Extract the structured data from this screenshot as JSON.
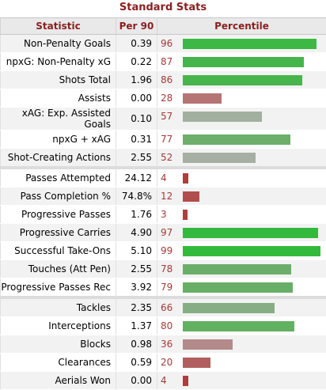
{
  "table": {
    "caption": "Standard Stats",
    "headers": {
      "stat": "Statistic",
      "per90": "Per 90",
      "percentile": "Percentile"
    },
    "groups": [
      [
        {
          "label": "Non-Penalty Goals",
          "per90": "0.39",
          "percentile": 96,
          "bar_color": "#3cb844"
        },
        {
          "label": "npxG: Non-Penalty xG",
          "per90": "0.22",
          "percentile": 87,
          "bar_color": "#44b54a"
        },
        {
          "label": "Shots Total",
          "per90": "1.96",
          "percentile": 86,
          "bar_color": "#47b44c"
        },
        {
          "label": "Assists",
          "per90": "0.00",
          "percentile": 28,
          "bar_color": "#b67373"
        },
        {
          "label": "xAG: Exp. Assisted Goals",
          "per90": "0.10",
          "percentile": 57,
          "bar_color": "#a2b09f"
        },
        {
          "label": "npxG + xAG",
          "per90": "0.31",
          "percentile": 77,
          "bar_color": "#6cae6a"
        },
        {
          "label": "Shot-Creating Actions",
          "per90": "2.55",
          "percentile": 52,
          "bar_color": "#a7aea4"
        }
      ],
      [
        {
          "label": "Passes Attempted",
          "per90": "24.12",
          "percentile": 4,
          "bar_color": "#b03c3c"
        },
        {
          "label": "Pass Completion %",
          "per90": "74.8%",
          "percentile": 12,
          "bar_color": "#b24d4d"
        },
        {
          "label": "Progressive Passes",
          "per90": "1.76",
          "percentile": 3,
          "bar_color": "#b03c3c"
        },
        {
          "label": "Progressive Carries",
          "per90": "4.90",
          "percentile": 97,
          "bar_color": "#35b83e"
        },
        {
          "label": "Successful Take-Ons",
          "per90": "5.10",
          "percentile": 99,
          "bar_color": "#33ba3c"
        },
        {
          "label": "Touches (Att Pen)",
          "per90": "2.55",
          "percentile": 78,
          "bar_color": "#6aae69"
        },
        {
          "label": "Progressive Passes Rec",
          "per90": "3.92",
          "percentile": 79,
          "bar_color": "#67af66"
        }
      ],
      [
        {
          "label": "Tackles",
          "per90": "2.35",
          "percentile": 66,
          "bar_color": "#86ad83"
        },
        {
          "label": "Interceptions",
          "per90": "1.37",
          "percentile": 80,
          "bar_color": "#62b061"
        },
        {
          "label": "Blocks",
          "per90": "0.98",
          "percentile": 36,
          "bar_color": "#b28a8a"
        },
        {
          "label": "Clearances",
          "per90": "0.59",
          "percentile": 20,
          "bar_color": "#b15e5e"
        },
        {
          "label": "Aerials Won",
          "per90": "0.00",
          "percentile": 4,
          "bar_color": "#b03c3c"
        }
      ]
    ]
  }
}
